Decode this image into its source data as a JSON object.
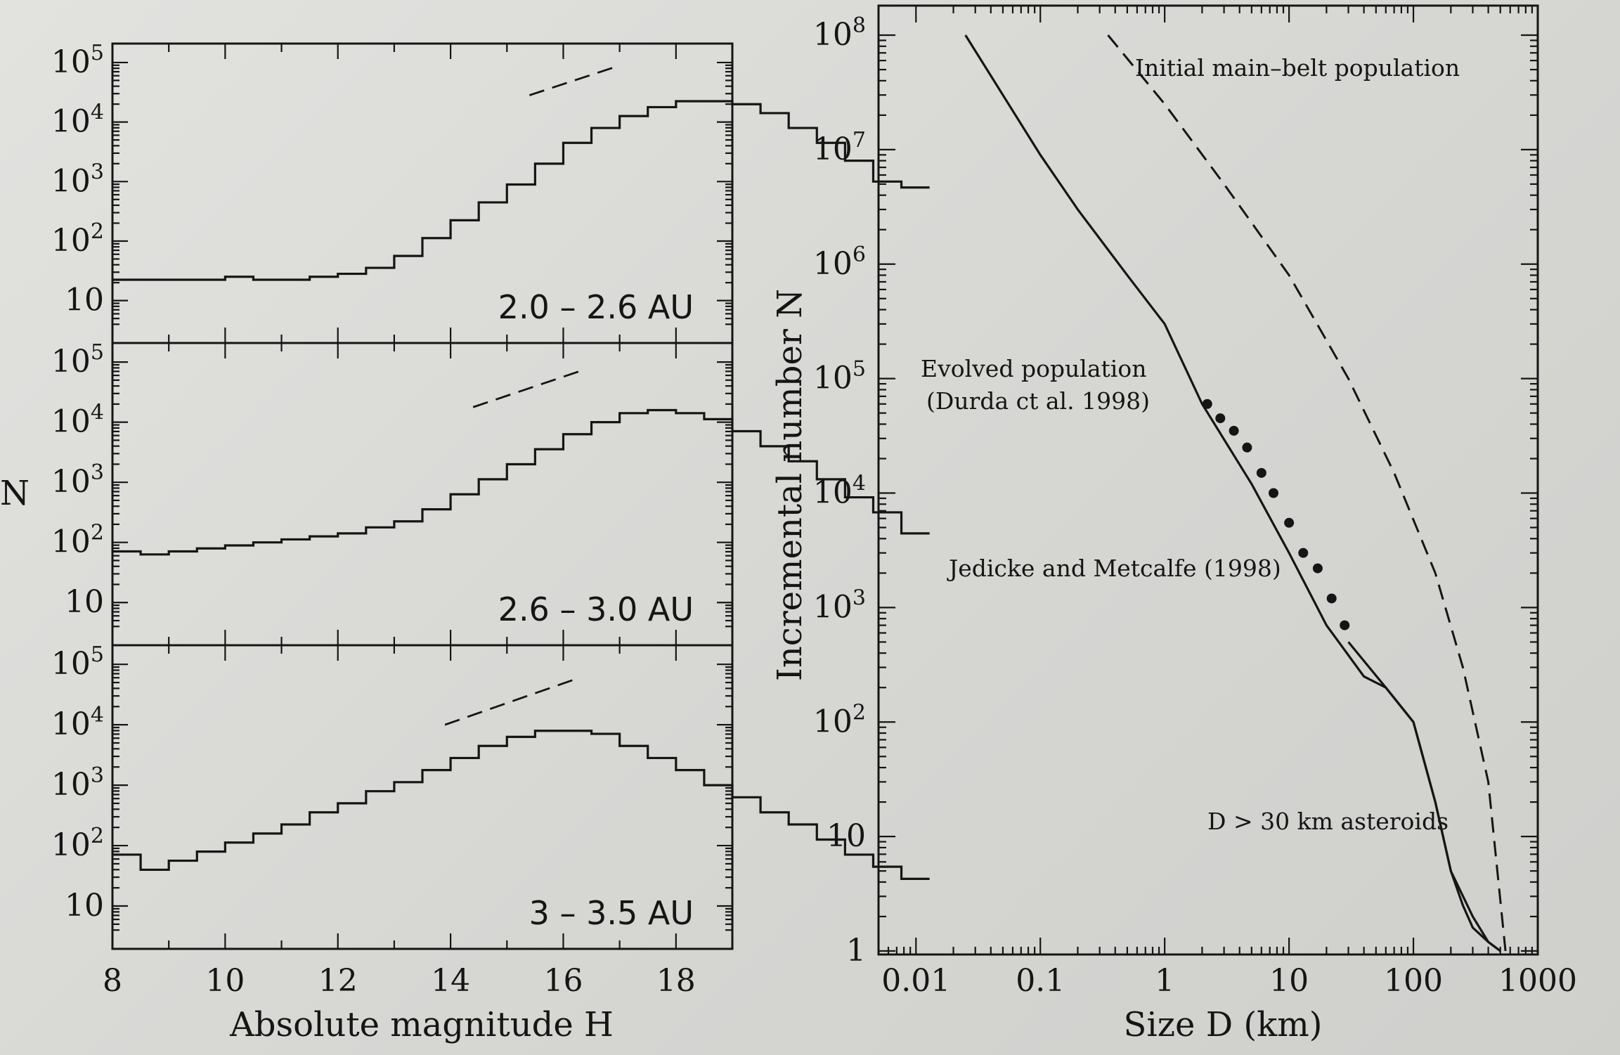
{
  "chart_data": [
    {
      "type": "histogram",
      "panel_label": "2.0 – 2.6 AU",
      "xlabel": "Absolute magnitude H",
      "ylabel": "N",
      "xlim": [
        8,
        19
      ],
      "ylim_log10": [
        0.5,
        5.2
      ],
      "y_ticks": [
        "10",
        "10^2",
        "10^3",
        "10^4",
        "10^5"
      ],
      "x_ticks": [
        8,
        10,
        12,
        14,
        16,
        18
      ],
      "bin_width": 0.5,
      "bin_start": 8.25,
      "log10_counts": [
        1.35,
        1.35,
        1.35,
        1.35,
        1.4,
        1.35,
        1.35,
        1.4,
        1.45,
        1.55,
        1.75,
        2.05,
        2.35,
        2.65,
        2.95,
        3.3,
        3.65,
        3.9,
        4.1,
        4.25,
        4.35,
        4.35,
        4.3,
        4.15,
        3.9,
        3.65,
        3.35,
        3.0,
        2.9
      ],
      "dashed_line": {
        "x": [
          15.4,
          17.0
        ],
        "log10_y": [
          4.45,
          4.95
        ]
      }
    },
    {
      "type": "histogram",
      "panel_label": "2.6 – 3.0 AU",
      "xlabel": "Absolute magnitude H",
      "ylabel": "N",
      "xlim": [
        8,
        19
      ],
      "ylim_log10": [
        0.5,
        5.2
      ],
      "y_ticks": [
        "10",
        "10^2",
        "10^3",
        "10^4",
        "10^5"
      ],
      "x_ticks": [
        8,
        10,
        12,
        14,
        16,
        18
      ],
      "bin_width": 0.5,
      "bin_start": 8.25,
      "log10_counts": [
        1.85,
        1.8,
        1.85,
        1.9,
        1.95,
        2.0,
        2.05,
        2.1,
        2.15,
        2.25,
        2.35,
        2.55,
        2.8,
        3.05,
        3.3,
        3.55,
        3.8,
        4.0,
        4.15,
        4.2,
        4.15,
        4.05,
        3.85,
        3.6,
        3.35,
        3.05,
        2.75,
        2.5,
        2.15
      ],
      "dashed_line": {
        "x": [
          14.4,
          16.3
        ],
        "log10_y": [
          4.25,
          4.85
        ]
      }
    },
    {
      "type": "histogram",
      "panel_label": "3 – 3.5 AU",
      "xlabel": "Absolute magnitude H",
      "ylabel": "N",
      "xlim": [
        8,
        19
      ],
      "ylim_log10": [
        0.5,
        5.2
      ],
      "y_ticks": [
        "10",
        "10^2",
        "10^3",
        "10^4",
        "10^5"
      ],
      "x_ticks": [
        8,
        10,
        12,
        14,
        16,
        18
      ],
      "bin_width": 0.5,
      "bin_start": 8.25,
      "log10_counts": [
        1.85,
        1.6,
        1.75,
        1.9,
        2.05,
        2.2,
        2.35,
        2.55,
        2.7,
        2.9,
        3.05,
        3.25,
        3.45,
        3.65,
        3.8,
        3.9,
        3.9,
        3.85,
        3.65,
        3.45,
        3.25,
        3.0,
        2.8,
        2.55,
        2.35,
        2.1,
        1.85,
        1.65,
        1.45
      ],
      "dashed_line": {
        "x": [
          13.9,
          16.2
        ],
        "log10_y": [
          4.0,
          4.75
        ]
      }
    },
    {
      "type": "line",
      "xlabel": "Size D (km)",
      "ylabel": "Incremental number N",
      "x_scale": "log",
      "y_scale": "log",
      "x_ticks": [
        "0.01",
        "0.1",
        "1",
        "10",
        "100",
        "1000"
      ],
      "y_ticks": [
        "1",
        "10",
        "10^2",
        "10^3",
        "10^4",
        "10^5",
        "10^6",
        "10^7",
        "10^8"
      ],
      "xlim": [
        0.005,
        1000
      ],
      "ylim": [
        1,
        100000000
      ],
      "annotations": [
        "Initial main–belt population",
        "Evolved population",
        "(Durda ct al. 1998)",
        "Jedicke and Metcalfe (1998)",
        "D > 30 km asteroids"
      ],
      "series": [
        {
          "name": "Initial main–belt population",
          "style": "dashed",
          "x": [
            0.35,
            1,
            3,
            10,
            30,
            70,
            150,
            250,
            400,
            550
          ],
          "y": [
            100000000,
            25000000,
            5000000,
            800000,
            100000,
            15000,
            2000,
            300,
            30,
            1
          ]
        },
        {
          "name": "Evolved population",
          "style": "solid",
          "x": [
            0.025,
            0.05,
            0.1,
            0.2,
            0.5,
            1,
            2,
            5,
            10,
            20,
            40,
            60,
            100,
            150,
            200,
            300,
            400,
            500
          ],
          "y": [
            100000000,
            30000000,
            9000000,
            3000000,
            800000,
            300000,
            60000,
            12000,
            3000,
            700,
            250,
            200,
            100,
            20,
            5,
            2,
            1.2,
            1
          ]
        },
        {
          "name": "Jedicke and Metcalfe (1998)",
          "style": "points",
          "x": [
            2.2,
            2.8,
            3.6,
            4.6,
            6,
            7.5,
            10,
            13,
            17,
            22,
            28
          ],
          "y": [
            60000,
            45000,
            35000,
            25000,
            15000,
            10000,
            5500,
            3000,
            2200,
            1200,
            700
          ]
        },
        {
          "name": "D > 30 km asteroids",
          "style": "solid",
          "x": [
            30,
            60,
            100,
            150,
            200,
            250,
            300,
            400,
            500
          ],
          "y": [
            500,
            200,
            100,
            20,
            5,
            2.5,
            1.6,
            1.2,
            1
          ]
        }
      ]
    }
  ]
}
